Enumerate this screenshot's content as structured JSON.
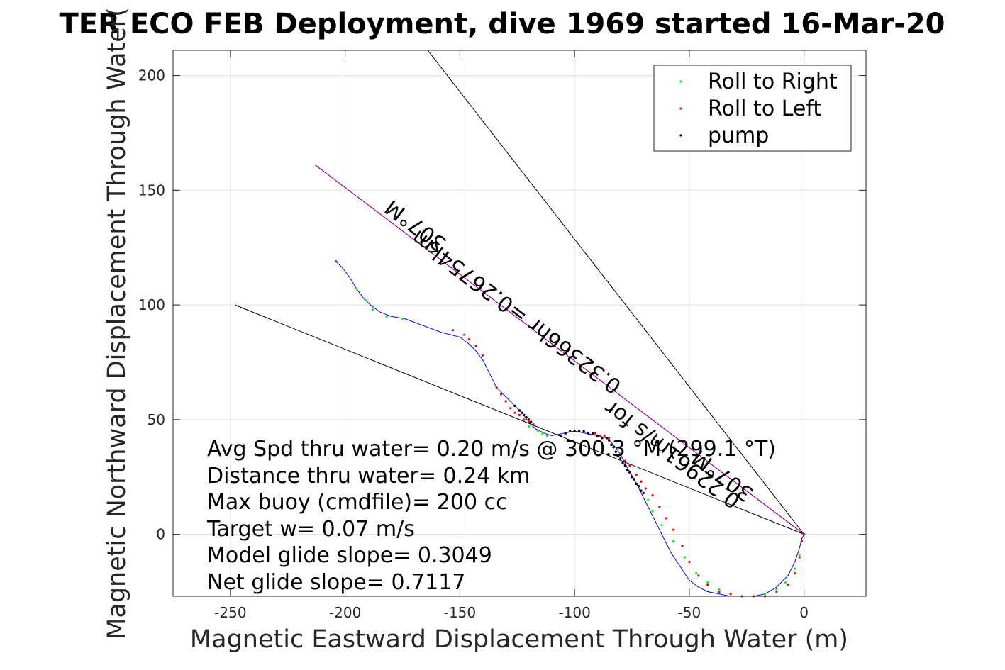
{
  "chart_data": {
    "type": "scatter",
    "title": "TER ECO FEB Deployment, dive 1969 started 16-Mar-20",
    "xlabel": "Magnetic Eastward Displacement Through Water (m)",
    "ylabel": "Magnetic Northward Displacement Through Water(",
    "xlim": [
      -275,
      27
    ],
    "ylim": [
      -27,
      211
    ],
    "xticks": [
      "-250",
      "-200",
      "-150",
      "-100",
      "-50",
      "0"
    ],
    "yticks": [
      "0",
      "50",
      "100",
      "150",
      "200"
    ],
    "grid": true,
    "legend_position": "top-right",
    "legend": [
      "Roll to Right",
      "Roll to Left",
      "pump"
    ],
    "colors": {
      "track": "#0000ff",
      "roll_right": "#00ff00",
      "roll_left": "#ff0000",
      "pump": "#000000",
      "net_line": "#ff00ff",
      "box": "#262626"
    },
    "track": {
      "x": [
        -204,
        -201,
        -198,
        -195,
        -192,
        -189,
        -185,
        -180,
        -174,
        -166,
        -158,
        -150,
        -146,
        -143,
        -140,
        -137,
        -134,
        -130,
        -126,
        -123,
        -120,
        -117,
        -113,
        -110,
        -105,
        -100,
        -95,
        -90,
        -86,
        -83,
        -80,
        -77,
        -74,
        -71,
        -68,
        -66,
        -64,
        -61,
        -58,
        -54,
        -50,
        -46,
        -42,
        -37,
        -32,
        -27,
        -22,
        -17,
        -12,
        -7,
        -4,
        -2,
        -1,
        0,
        0,
        0
      ],
      "y": [
        119,
        116,
        112,
        107,
        103,
        100,
        97,
        95,
        94,
        91,
        88,
        86,
        83,
        80,
        76,
        70,
        64,
        60,
        56,
        53,
        49,
        46,
        44,
        43,
        44,
        45,
        44,
        43,
        42,
        39,
        35,
        29,
        24,
        18,
        12,
        8,
        4,
        -2,
        -8,
        -14,
        -20,
        -23,
        -25,
        -26,
        -27,
        -27,
        -27,
        -26,
        -23,
        -18,
        -12,
        -6,
        -2,
        0,
        -2,
        0
      ]
    },
    "markers": {
      "roll_right": {
        "x": [
          -195,
          -191,
          -188,
          -182,
          -175,
          -120,
          -116,
          -114,
          -112,
          -68,
          -66,
          -62,
          -57,
          -52,
          -47,
          -42,
          -37,
          -32,
          -27,
          -22,
          -17,
          -12,
          -8,
          -4,
          -2,
          -1,
          0
        ],
        "y": [
          107,
          102,
          98,
          95,
          94,
          47,
          45,
          44,
          43,
          15,
          10,
          4,
          -3,
          -10,
          -17,
          -21,
          -24,
          -26,
          -27,
          -27,
          -26,
          -24,
          -21,
          -15,
          -9,
          -3,
          0
        ]
      },
      "roll_left": {
        "x": [
          -204,
          -153,
          -148,
          -146,
          -143,
          -140,
          -134,
          -132,
          -130,
          -128,
          -126,
          -124,
          -122,
          -120,
          -118,
          -98,
          -96,
          -94,
          -91,
          -89,
          -87,
          -85,
          -80,
          -78,
          -76,
          -73,
          -71,
          -69,
          -66,
          -63,
          -60,
          -57,
          -53,
          -50,
          -46,
          -42,
          -37,
          -32,
          -27,
          -22,
          -17,
          -12,
          -7,
          -4,
          -2,
          -1,
          0
        ],
        "y": [
          119,
          89,
          87,
          85,
          82,
          78,
          64,
          61,
          58,
          55,
          53,
          52,
          50,
          49,
          48,
          45,
          45,
          44,
          44,
          43,
          43,
          42,
          35,
          32,
          30,
          26,
          23,
          20,
          17,
          12,
          7,
          2,
          -5,
          -12,
          -18,
          -22,
          -25,
          -26,
          -27,
          -27,
          -27,
          -25,
          -22,
          -17,
          -10,
          -3,
          0
        ]
      },
      "pump": {
        "x": [
          -126,
          -124,
          -123,
          -122,
          -121,
          -120,
          -119,
          -106,
          -104,
          -102,
          -100,
          -98,
          -96,
          -94,
          -92,
          -90,
          -88,
          -86,
          -85,
          -84,
          -83,
          -82,
          -81,
          -80,
          -79,
          -78,
          -77,
          -76,
          -75,
          -74,
          -73,
          -72,
          -71,
          -70
        ],
        "y": [
          56,
          54,
          53,
          52,
          51,
          50,
          49,
          43,
          44,
          45,
          45,
          45,
          45,
          44,
          44,
          43,
          42,
          42,
          41,
          39,
          38,
          36,
          34,
          33,
          31,
          30,
          28,
          27,
          25,
          24,
          22,
          21,
          19,
          18
        ]
      }
    },
    "net_line": {
      "x": [
        -213,
        0
      ],
      "y": [
        161,
        0
      ]
    },
    "cone_lines": [
      {
        "x": [
          -164,
          0
        ],
        "y": [
          211,
          0
        ]
      },
      {
        "x": [
          -248,
          0
        ],
        "y": [
          100,
          0
        ]
      }
    ],
    "stats": [
      "Avg Spd thru water=  0.20 m/s @ 300.3  °M (299.1 °T)",
      "Distance thru water=  0.24 km",
      "Max buoy (cmdfile)= 200 cc",
      "Target w= 0.07 m/s",
      "Model glide slope= 0.3049",
      "Net glide slope= 0.7117"
    ],
    "annotations": {
      "label_upper_1": "307°M",
      "label_upper_2": "0.32366hr =0.26754km",
      "label_lower_1": "307°M",
      "label_lower_2": "0.22961m/s for"
    }
  }
}
